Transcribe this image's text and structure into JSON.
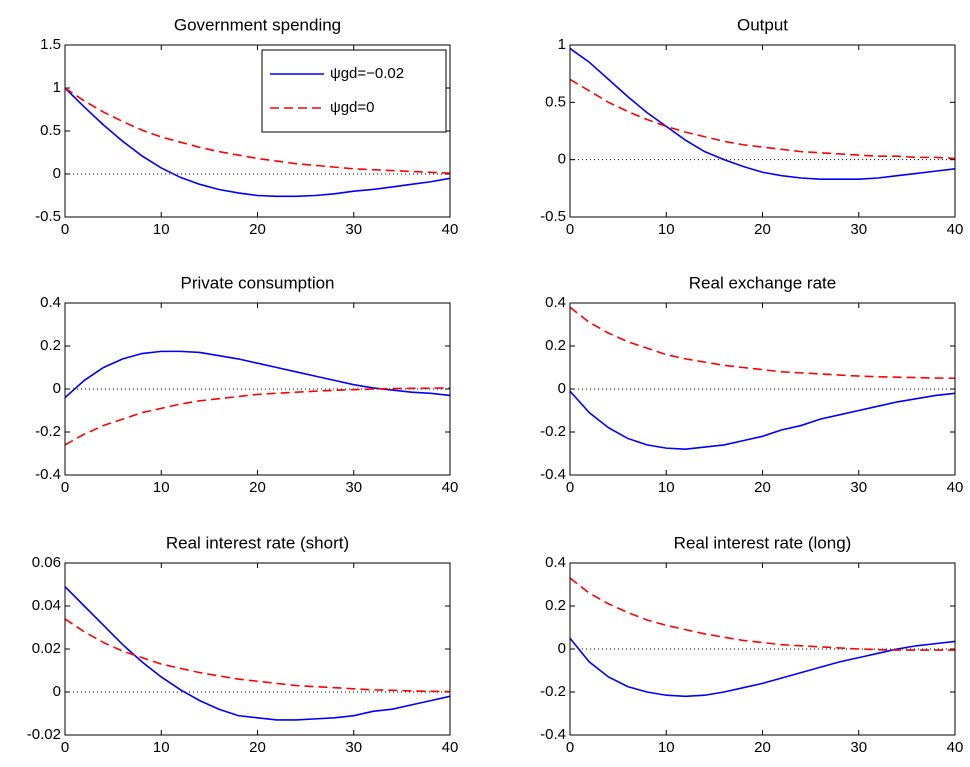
{
  "chart_data": [
    {
      "type": "line",
      "title": "Government spending",
      "x": [
        0,
        2,
        4,
        6,
        8,
        10,
        12,
        14,
        16,
        18,
        20,
        22,
        24,
        26,
        28,
        30,
        32,
        34,
        36,
        38,
        40
      ],
      "series": [
        {
          "name": "ψgd=−0.02",
          "color": "#0000ff",
          "line_style": "solid",
          "values": [
            1,
            0.78,
            0.57,
            0.38,
            0.21,
            0.07,
            -0.04,
            -0.12,
            -0.18,
            -0.22,
            -0.25,
            -0.26,
            -0.26,
            -0.25,
            -0.23,
            -0.2,
            -0.18,
            -0.15,
            -0.12,
            -0.09,
            -0.05
          ]
        },
        {
          "name": "ψgd=0",
          "color": "#ff0000",
          "line_style": "dashed",
          "values": [
            1,
            0.85,
            0.72,
            0.61,
            0.51,
            0.43,
            0.37,
            0.31,
            0.26,
            0.22,
            0.18,
            0.15,
            0.12,
            0.1,
            0.08,
            0.06,
            0.05,
            0.04,
            0.03,
            0.02,
            0.01
          ]
        }
      ],
      "xlim": [
        0,
        40
      ],
      "xticks": [
        0,
        10,
        20,
        30,
        40
      ],
      "ylim": [
        -0.5,
        1.5
      ],
      "yticks": [
        -0.5,
        0,
        0.5,
        1,
        1.5
      ],
      "zero_line": true,
      "legend": "upper right"
    },
    {
      "type": "line",
      "title": "Output",
      "x": [
        0,
        2,
        4,
        6,
        8,
        10,
        12,
        14,
        16,
        18,
        20,
        22,
        24,
        26,
        28,
        30,
        32,
        34,
        36,
        38,
        40
      ],
      "series": [
        {
          "color": "#0000ff",
          "line_style": "solid",
          "values": [
            0.97,
            0.85,
            0.7,
            0.55,
            0.41,
            0.29,
            0.17,
            0.07,
            0,
            -0.06,
            -0.11,
            -0.14,
            -0.16,
            -0.17,
            -0.17,
            -0.17,
            -0.16,
            -0.14,
            -0.12,
            -0.1,
            -0.08
          ]
        },
        {
          "color": "#ff0000",
          "line_style": "dashed",
          "values": [
            0.7,
            0.6,
            0.5,
            0.42,
            0.35,
            0.29,
            0.24,
            0.2,
            0.16,
            0.13,
            0.11,
            0.09,
            0.07,
            0.06,
            0.05,
            0.04,
            0.03,
            0.03,
            0.02,
            0.02,
            0.01
          ]
        }
      ],
      "xlim": [
        0,
        40
      ],
      "xticks": [
        0,
        10,
        20,
        30,
        40
      ],
      "ylim": [
        -0.5,
        1
      ],
      "yticks": [
        -0.5,
        0,
        0.5,
        1
      ],
      "zero_line": true
    },
    {
      "type": "line",
      "title": "Private consumption",
      "x": [
        0,
        2,
        4,
        6,
        8,
        10,
        12,
        14,
        16,
        18,
        20,
        22,
        24,
        26,
        28,
        30,
        32,
        34,
        36,
        38,
        40
      ],
      "series": [
        {
          "color": "#0000ff",
          "line_style": "solid",
          "values": [
            -0.04,
            0.04,
            0.1,
            0.14,
            0.165,
            0.175,
            0.175,
            0.17,
            0.155,
            0.14,
            0.12,
            0.1,
            0.08,
            0.06,
            0.04,
            0.02,
            0.005,
            -0.005,
            -0.015,
            -0.02,
            -0.03
          ]
        },
        {
          "color": "#ff0000",
          "line_style": "dashed",
          "values": [
            -0.26,
            -0.21,
            -0.17,
            -0.14,
            -0.11,
            -0.09,
            -0.07,
            -0.055,
            -0.045,
            -0.035,
            -0.025,
            -0.02,
            -0.015,
            -0.01,
            -0.006,
            -0.003,
            0,
            0.002,
            0.003,
            0.004,
            0.005
          ]
        }
      ],
      "xlim": [
        0,
        40
      ],
      "xticks": [
        0,
        10,
        20,
        30,
        40
      ],
      "ylim": [
        -0.4,
        0.4
      ],
      "yticks": [
        -0.4,
        -0.2,
        0,
        0.2,
        0.4
      ],
      "zero_line": true
    },
    {
      "type": "line",
      "title": "Real exchange rate",
      "x": [
        0,
        2,
        4,
        6,
        8,
        10,
        12,
        14,
        16,
        18,
        20,
        22,
        24,
        26,
        28,
        30,
        32,
        34,
        36,
        38,
        40
      ],
      "series": [
        {
          "color": "#0000ff",
          "line_style": "solid",
          "values": [
            -0.01,
            -0.11,
            -0.18,
            -0.23,
            -0.26,
            -0.275,
            -0.28,
            -0.27,
            -0.26,
            -0.24,
            -0.22,
            -0.19,
            -0.17,
            -0.14,
            -0.12,
            -0.1,
            -0.08,
            -0.06,
            -0.045,
            -0.03,
            -0.02
          ]
        },
        {
          "color": "#ff0000",
          "line_style": "dashed",
          "values": [
            0.38,
            0.31,
            0.26,
            0.22,
            0.19,
            0.16,
            0.14,
            0.125,
            0.11,
            0.1,
            0.09,
            0.08,
            0.075,
            0.07,
            0.065,
            0.06,
            0.057,
            0.055,
            0.053,
            0.051,
            0.05
          ]
        }
      ],
      "xlim": [
        0,
        40
      ],
      "xticks": [
        0,
        10,
        20,
        30,
        40
      ],
      "ylim": [
        -0.4,
        0.4
      ],
      "yticks": [
        -0.4,
        -0.2,
        0,
        0.2,
        0.4
      ],
      "zero_line": true
    },
    {
      "type": "line",
      "title": "Real interest rate (short)",
      "x": [
        0,
        2,
        4,
        6,
        8,
        10,
        12,
        14,
        16,
        18,
        20,
        22,
        24,
        26,
        28,
        30,
        32,
        34,
        36,
        38,
        40
      ],
      "series": [
        {
          "color": "#0000ff",
          "line_style": "solid",
          "values": [
            0.049,
            0.04,
            0.031,
            0.022,
            0.014,
            0.007,
            0.001,
            -0.004,
            -0.008,
            -0.011,
            -0.012,
            -0.013,
            -0.013,
            -0.0125,
            -0.012,
            -0.011,
            -0.009,
            -0.008,
            -0.006,
            -0.004,
            -0.002
          ]
        },
        {
          "color": "#ff0000",
          "line_style": "dashed",
          "values": [
            0.034,
            0.028,
            0.023,
            0.019,
            0.016,
            0.013,
            0.011,
            0.009,
            0.0075,
            0.006,
            0.005,
            0.004,
            0.003,
            0.0025,
            0.002,
            0.0015,
            0.001,
            0.0008,
            0.0005,
            0.0003,
            0.0002
          ]
        }
      ],
      "xlim": [
        0,
        40
      ],
      "xticks": [
        0,
        10,
        20,
        30,
        40
      ],
      "ylim": [
        -0.02,
        0.06
      ],
      "yticks": [
        -0.02,
        0,
        0.02,
        0.04,
        0.06
      ],
      "zero_line": true
    },
    {
      "type": "line",
      "title": "Real interest rate (long)",
      "x": [
        0,
        2,
        4,
        6,
        8,
        10,
        12,
        14,
        16,
        18,
        20,
        22,
        24,
        26,
        28,
        30,
        32,
        34,
        36,
        38,
        40
      ],
      "series": [
        {
          "color": "#0000ff",
          "line_style": "solid",
          "values": [
            0.05,
            -0.06,
            -0.13,
            -0.175,
            -0.2,
            -0.215,
            -0.22,
            -0.215,
            -0.2,
            -0.18,
            -0.16,
            -0.135,
            -0.11,
            -0.085,
            -0.06,
            -0.04,
            -0.02,
            0,
            0.015,
            0.025,
            0.035
          ]
        },
        {
          "color": "#ff0000",
          "line_style": "dashed",
          "values": [
            0.33,
            0.26,
            0.21,
            0.17,
            0.135,
            0.11,
            0.09,
            0.07,
            0.055,
            0.04,
            0.03,
            0.02,
            0.015,
            0.01,
            0.005,
            0,
            -0.003,
            -0.005,
            -0.005,
            -0.005,
            -0.005
          ]
        }
      ],
      "xlim": [
        0,
        40
      ],
      "xticks": [
        0,
        10,
        20,
        30,
        40
      ],
      "ylim": [
        -0.4,
        0.4
      ],
      "yticks": [
        -0.4,
        -0.2,
        0,
        0.2,
        0.4
      ],
      "zero_line": true
    }
  ]
}
